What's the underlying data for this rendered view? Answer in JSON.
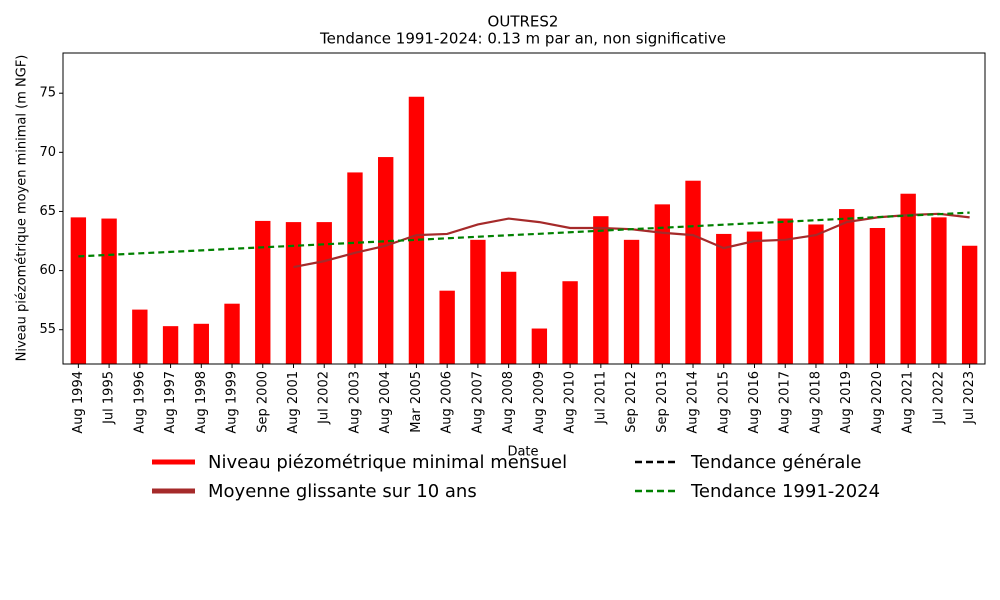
{
  "chart_data": {
    "type": "bar",
    "title": "OUTRES2",
    "subtitle": "Tendance 1991-2024: 0.13 m par an, non significative",
    "x_label": "Date",
    "y_label": "Niveau piézométrique moyen minimal (m NGF)",
    "categories": [
      "Aug 1994",
      "Jul 1995",
      "Aug 1996",
      "Aug 1997",
      "Aug 1998",
      "Aug 1999",
      "Sep 2000",
      "Aug 2001",
      "Jul 2002",
      "Aug 2003",
      "Aug 2004",
      "Mar 2005",
      "Aug 2006",
      "Aug 2007",
      "Aug 2008",
      "Aug 2009",
      "Aug 2010",
      "Jul 2011",
      "Sep 2012",
      "Sep 2013",
      "Aug 2014",
      "Aug 2015",
      "Aug 2016",
      "Aug 2017",
      "Aug 2018",
      "Aug 2019",
      "Aug 2020",
      "Aug 2021",
      "Jul 2022",
      "Jul 2023"
    ],
    "series": [
      {
        "name": "Niveau piézométrique minimal mensuel",
        "type": "bar",
        "color": "#ff0000",
        "values": [
          64.5,
          64.4,
          56.7,
          55.3,
          55.5,
          57.2,
          64.2,
          64.1,
          64.1,
          68.3,
          69.6,
          74.7,
          58.3,
          62.6,
          59.9,
          55.1,
          59.1,
          64.6,
          62.6,
          65.6,
          67.6,
          63.1,
          63.3,
          64.4,
          63.9,
          65.2,
          63.6,
          66.5,
          64.5,
          62.1
        ]
      },
      {
        "name": "Moyenne glissante sur 10 ans",
        "type": "line",
        "color": "#a52a2a",
        "dashed": false,
        "values": [
          null,
          null,
          null,
          null,
          null,
          null,
          null,
          60.3,
          60.8,
          61.5,
          62.1,
          63.0,
          63.1,
          63.9,
          64.4,
          64.1,
          63.6,
          63.6,
          63.5,
          63.2,
          63.0,
          61.9,
          62.5,
          62.6,
          63.0,
          64.1,
          64.5,
          64.7,
          64.8,
          64.5
        ]
      },
      {
        "name": "Tendance générale",
        "type": "line",
        "color": "#000000",
        "dashed": true,
        "values": [
          null,
          null,
          null,
          null,
          null,
          null,
          null,
          null,
          null,
          null,
          null,
          null,
          null,
          null,
          null,
          null,
          null,
          null,
          null,
          null,
          null,
          null,
          null,
          null,
          null,
          null,
          null,
          null,
          null,
          null
        ]
      },
      {
        "name": "Tendance 1991-2024",
        "type": "line",
        "color": "#008000",
        "dashed": true,
        "values": [
          61.2,
          61.33,
          61.46,
          61.58,
          61.71,
          61.84,
          61.97,
          62.09,
          62.22,
          62.35,
          62.48,
          62.6,
          62.73,
          62.86,
          62.99,
          63.11,
          63.24,
          63.37,
          63.5,
          63.62,
          63.75,
          63.88,
          64.01,
          64.13,
          64.26,
          64.39,
          64.52,
          64.65,
          64.77,
          64.9
        ]
      }
    ],
    "ylim": [
      52.1,
      78.4
    ],
    "yticks": [
      55,
      60,
      65,
      70,
      75
    ],
    "grid": false,
    "legend": "bottom"
  }
}
